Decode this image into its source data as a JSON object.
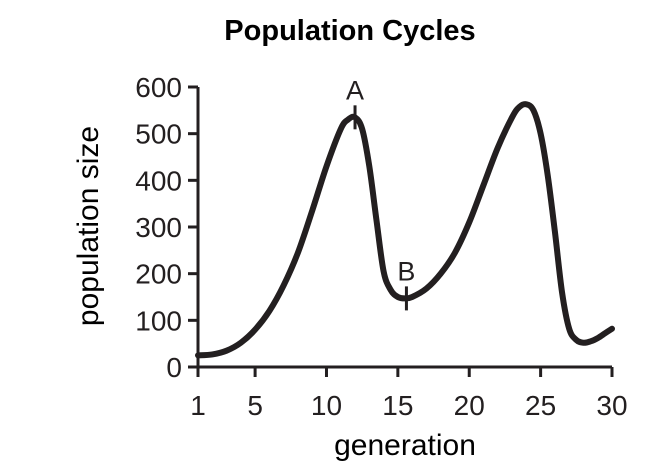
{
  "chart_data": {
    "type": "line",
    "title": "Population Cycles",
    "xlabel": "generation",
    "ylabel": "population size",
    "xlim": [
      1,
      30
    ],
    "ylim": [
      0,
      600
    ],
    "x_ticks": [
      1,
      5,
      10,
      15,
      20,
      25,
      30
    ],
    "y_ticks": [
      0,
      100,
      200,
      300,
      400,
      500,
      600
    ],
    "grid": false,
    "legend": "none",
    "line_color": "#231f20",
    "series": [
      {
        "x": [
          1,
          2,
          3,
          4,
          5,
          6,
          7,
          8,
          9,
          10,
          11,
          11.5,
          12,
          12.5,
          13,
          13.5,
          14,
          14.5,
          15,
          15.5,
          16,
          17,
          18,
          19,
          20,
          21,
          22,
          23,
          23.5,
          24,
          24.5,
          25,
          25.5,
          26,
          26.5,
          27,
          27.5,
          28,
          28.5,
          29,
          29.5,
          30
        ],
        "y": [
          25,
          27,
          35,
          52,
          80,
          120,
          175,
          245,
          335,
          430,
          510,
          530,
          535,
          510,
          430,
          315,
          205,
          165,
          150,
          147,
          150,
          168,
          200,
          245,
          310,
          390,
          470,
          535,
          557,
          563,
          550,
          500,
          410,
          290,
          160,
          82,
          58,
          52,
          55,
          62,
          72,
          82
        ]
      }
    ],
    "annotations": [
      {
        "label": "A",
        "x": 12,
        "y": 535
      },
      {
        "label": "B",
        "x": 15.6,
        "y": 147
      }
    ]
  }
}
